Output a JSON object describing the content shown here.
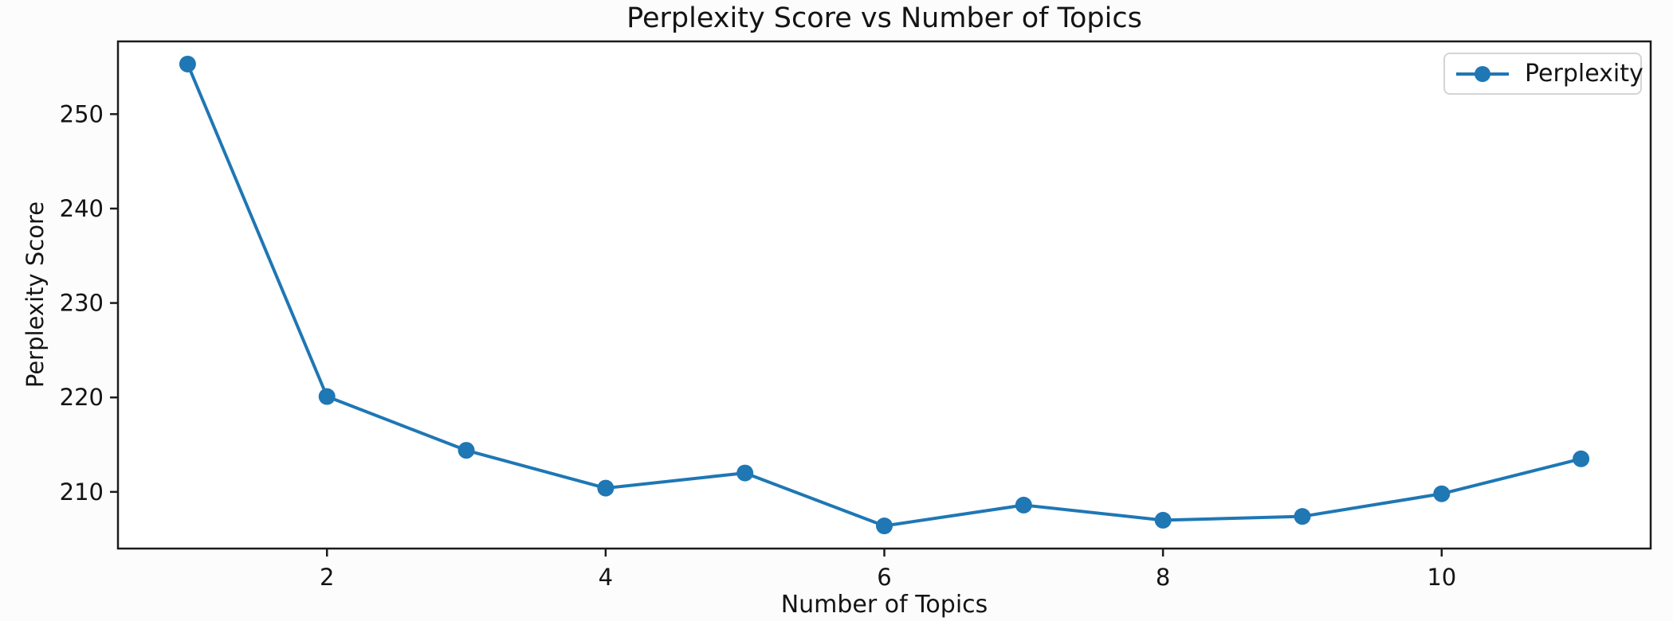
{
  "chart_data": {
    "type": "line",
    "title": "Perplexity Score vs Number of Topics",
    "xlabel": "Number of Topics",
    "ylabel": "Perplexity Score",
    "series": [
      {
        "name": "Perplexity",
        "x": [
          1,
          2,
          3,
          4,
          5,
          6,
          7,
          8,
          9,
          10,
          11
        ],
        "y": [
          255.3,
          220.1,
          214.4,
          210.4,
          212.0,
          206.4,
          208.6,
          207.0,
          207.4,
          209.8,
          213.5
        ],
        "color": "#1f77b4",
        "marker": "circle"
      }
    ],
    "xticks": [
      2,
      4,
      6,
      8,
      10
    ],
    "yticks": [
      210,
      220,
      230,
      240,
      250
    ],
    "xlim": [
      0.5,
      11.5
    ],
    "ylim": [
      204.0,
      257.7
    ],
    "grid": false,
    "legend": {
      "label": "Perplexity",
      "position": "upper right"
    },
    "colors": {
      "line": "#1f77b4",
      "axis": "#1c1c1c",
      "text": "#141414",
      "background": "#ffffff",
      "legend_border": "#d4d4d4"
    }
  }
}
